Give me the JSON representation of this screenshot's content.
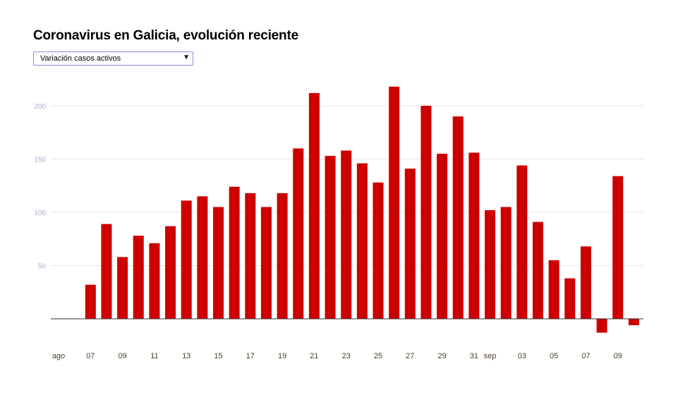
{
  "title": "Coronavirus en Galicia, evolución reciente",
  "selector": {
    "selected": "Variación casos activos",
    "icon": "triangle-down-icon"
  },
  "chart_data": {
    "type": "bar",
    "title": "Coronavirus en Galicia, evolución reciente",
    "xlabel": "",
    "ylabel": "",
    "ylim": [
      -25,
      230
    ],
    "yticks": [
      50,
      100,
      150,
      200
    ],
    "grid": true,
    "bar_color": "#cc0000",
    "x_start": "ago 05",
    "x_tick_labels": [
      "ago",
      "07",
      "09",
      "11",
      "13",
      "15",
      "17",
      "19",
      "21",
      "23",
      "25",
      "27",
      "29",
      "31",
      "sep",
      "03",
      "05",
      "07",
      "09"
    ],
    "categories": [
      "07 ago",
      "08 ago",
      "09 ago",
      "10 ago",
      "11 ago",
      "12 ago",
      "13 ago",
      "14 ago",
      "15 ago",
      "16 ago",
      "17 ago",
      "18 ago",
      "19 ago",
      "20 ago",
      "21 ago",
      "22 ago",
      "23 ago",
      "24 ago",
      "25 ago",
      "26 ago",
      "27 ago",
      "28 ago",
      "29 ago",
      "30 ago",
      "31 ago",
      "01 sep",
      "02 sep",
      "03 sep",
      "04 sep",
      "05 sep",
      "06 sep",
      "07 sep",
      "08 sep",
      "09 sep",
      "10 sep"
    ],
    "values": [
      32,
      89,
      58,
      78,
      71,
      87,
      111,
      115,
      105,
      124,
      118,
      105,
      118,
      160,
      212,
      153,
      158,
      146,
      128,
      218,
      141,
      200,
      155,
      190,
      156,
      102,
      105,
      144,
      91,
      55,
      38,
      68,
      -13,
      134,
      -6
    ]
  }
}
